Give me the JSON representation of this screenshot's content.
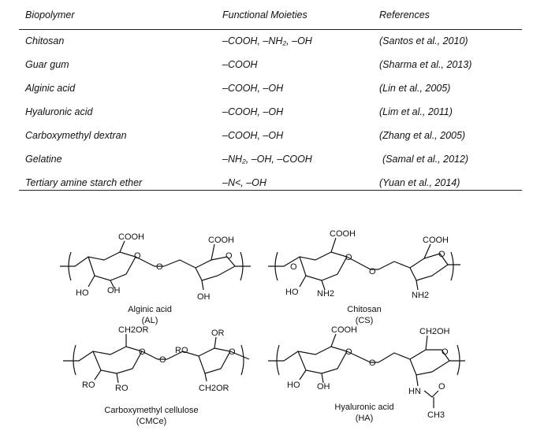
{
  "table": {
    "headers": [
      "Biopolymer",
      "Functional Moieties",
      "References"
    ],
    "rows": [
      {
        "biopolymer": "Chitosan",
        "moieties": "–COOH, –NH₂, –OH",
        "reference": "(Santos et al., 2010)"
      },
      {
        "biopolymer": "Guar gum",
        "moieties": "–COOH",
        "reference": "(Sharma et al., 2013)"
      },
      {
        "biopolymer": "Alginic acid",
        "moieties": "–COOH, –OH",
        "reference": "(Lin et al., 2005)"
      },
      {
        "biopolymer": "Hyaluronic acid",
        "moieties": "–COOH, –OH",
        "reference": "(Lim et al., 2011)"
      },
      {
        "biopolymer": "Carboxymethyl dextran",
        "moieties": "–COOH, –OH",
        "reference": "(Zhang et al., 2005)"
      },
      {
        "biopolymer": "Gelatine",
        "moieties": "–NH₂, –OH, –COOH",
        "reference": "(Samal et al., 2012)"
      },
      {
        "biopolymer": "Tertiary amine starch ether",
        "moieties": "–N<, –OH",
        "reference": "(Yuan et al., 2014)"
      }
    ]
  },
  "structures": {
    "alginic": {
      "name": "Alginic acid",
      "abbr": "(AL)",
      "cooh1": "COOH",
      "cooh2": "COOH",
      "ho": "HO",
      "oh1": "OH",
      "oh2": "OH"
    },
    "chitosan": {
      "name": "Chitosan",
      "abbr": "(CS)",
      "cooh1": "COOH",
      "cooh2": "COOH",
      "ho": "HO",
      "nh2a": "NH2",
      "nh2b": "NH2"
    },
    "cmc": {
      "name": "Carboxymethyl cellulose",
      "abbr": "(CMCe)",
      "ch2or1": "CH2OR",
      "ch2or2": "CH2OR",
      "ro1": "RO",
      "ro2": "RO",
      "ro3": "RO",
      "or1": "OR"
    },
    "ha": {
      "name": "Hyaluronic acid",
      "abbr": "(HA)",
      "cooh": "COOH",
      "ch2oh": "CH2OH",
      "ho": "HO",
      "oh": "OH",
      "hn": "HN",
      "ch3": "CH3"
    },
    "ring_o": "O"
  }
}
